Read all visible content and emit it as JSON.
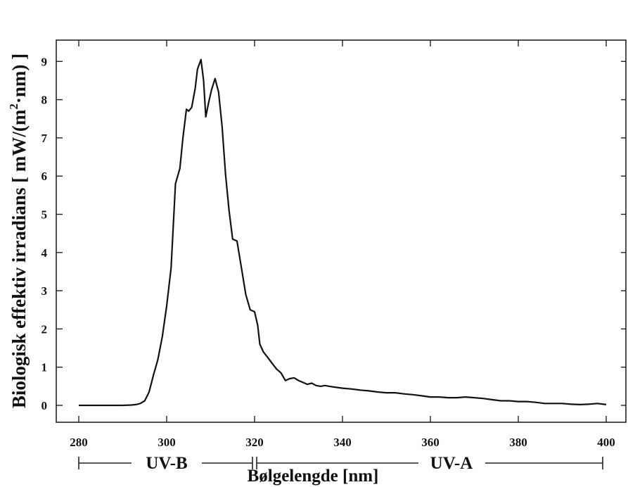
{
  "chart_data": {
    "type": "line",
    "title": "",
    "xlabel": "Bølgelengde [nm]",
    "ylabel": "Biologisk effektiv irradians [ mW/(m²·nm) ]",
    "ylabel_parts": {
      "main": "Biologisk effektiv irradians [ mW/(m",
      "sup": "2",
      "tail": "·nm) ]"
    },
    "xlim": [
      280,
      400
    ],
    "ylim": [
      -0.45,
      9.55
    ],
    "xticks": [
      280,
      300,
      320,
      340,
      360,
      380,
      400
    ],
    "yticks": [
      0,
      1,
      2,
      3,
      4,
      5,
      6,
      7,
      8,
      9
    ],
    "grid": false,
    "legend": "none",
    "series": [
      {
        "color": "#111111",
        "x": [
          280,
          282,
          284,
          286,
          288,
          290,
          292,
          293,
          294,
          295,
          296,
          297,
          298,
          299,
          300,
          301,
          302,
          303,
          303.7,
          304.5,
          305,
          305.7,
          306.5,
          307,
          307.8,
          308.4,
          308.9,
          309.5,
          310.2,
          311,
          311.8,
          312.6,
          313.4,
          314.2,
          315,
          316,
          317,
          318,
          319,
          320,
          320.7,
          321.2,
          322,
          323,
          324,
          325,
          326,
          327,
          328,
          329,
          330,
          331,
          332,
          333,
          334,
          335,
          336,
          337,
          338,
          340,
          342,
          344,
          346,
          348,
          350,
          352,
          354,
          356,
          358,
          360,
          362,
          364,
          366,
          368,
          370,
          372,
          374,
          376,
          378,
          380,
          382,
          384,
          386,
          388,
          390,
          392,
          394,
          396,
          398,
          400
        ],
        "y": [
          0,
          0,
          0,
          0,
          0,
          0,
          0.01,
          0.02,
          0.05,
          0.12,
          0.35,
          0.8,
          1.2,
          1.8,
          2.6,
          3.6,
          5.8,
          6.2,
          7.0,
          7.75,
          7.7,
          7.8,
          8.3,
          8.8,
          9.05,
          8.5,
          7.55,
          7.9,
          8.25,
          8.55,
          8.2,
          7.3,
          6.05,
          5.1,
          4.35,
          4.3,
          3.6,
          2.9,
          2.5,
          2.45,
          2.1,
          1.6,
          1.4,
          1.25,
          1.1,
          0.95,
          0.85,
          0.65,
          0.7,
          0.72,
          0.65,
          0.6,
          0.55,
          0.58,
          0.52,
          0.5,
          0.52,
          0.5,
          0.48,
          0.45,
          0.43,
          0.4,
          0.38,
          0.35,
          0.33,
          0.33,
          0.3,
          0.28,
          0.25,
          0.22,
          0.22,
          0.2,
          0.2,
          0.22,
          0.2,
          0.18,
          0.15,
          0.12,
          0.12,
          0.1,
          0.1,
          0.08,
          0.05,
          0.05,
          0.05,
          0.03,
          0.02,
          0.03,
          0.05,
          0.02
        ]
      }
    ],
    "bands": [
      {
        "label": "UV-B",
        "from": 280,
        "to": 320
      },
      {
        "label": "UV-A",
        "from": 320,
        "to": 400
      }
    ]
  }
}
